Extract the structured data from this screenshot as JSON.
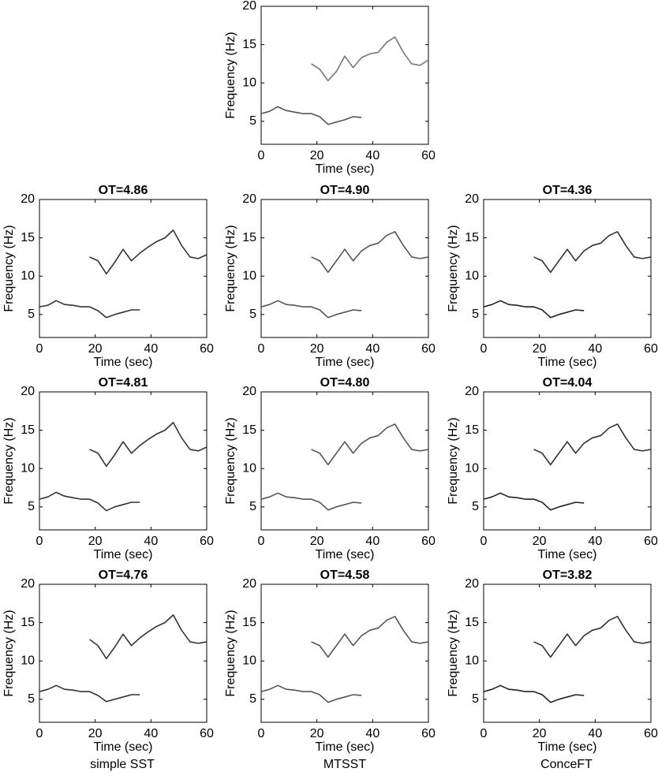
{
  "chart_data": [
    {
      "type": "line",
      "xlabel": "Time (sec)",
      "ylabel": "Frequency (Hz)",
      "xlim": [
        0,
        60
      ],
      "xticks": [
        0,
        20,
        40,
        60
      ],
      "ylim": [
        2,
        20
      ],
      "yticks": [
        5,
        10,
        15,
        20
      ],
      "x": [
        0,
        3,
        6,
        9,
        12,
        15,
        18,
        21,
        24,
        27,
        30,
        33,
        36,
        39,
        42,
        45,
        48,
        51,
        54,
        57,
        60
      ],
      "series": [
        {
          "color": "#555555",
          "values": [
            6.0,
            6.3,
            6.9,
            6.4,
            6.2,
            6.0,
            6.0,
            5.6,
            4.6,
            4.9,
            5.2,
            5.6,
            5.5,
            null,
            null,
            null,
            null,
            null,
            null,
            null,
            null
          ]
        },
        {
          "color": "#777777",
          "values": [
            null,
            null,
            null,
            null,
            null,
            null,
            12.5,
            11.8,
            10.3,
            11.5,
            13.5,
            12.0,
            13.3,
            13.8,
            14.0,
            15.3,
            16.0,
            14.0,
            12.5,
            12.3,
            13.0
          ]
        }
      ]
    },
    {
      "type": "line",
      "title": "OT=4.86",
      "xlabel": "Time (sec)",
      "ylabel": "Frequency (Hz)",
      "xlim": [
        0,
        60
      ],
      "xticks": [
        0,
        20,
        40,
        60
      ],
      "ylim": [
        2,
        20
      ],
      "yticks": [
        5,
        10,
        15,
        20
      ],
      "x": [
        0,
        3,
        6,
        9,
        12,
        15,
        18,
        21,
        24,
        27,
        30,
        33,
        36,
        39,
        42,
        45,
        48,
        51,
        54,
        57,
        60
      ],
      "series": [
        {
          "color": "#333333",
          "values": [
            6.0,
            6.2,
            6.8,
            6.3,
            6.2,
            6.0,
            6.0,
            5.5,
            4.6,
            5.0,
            5.3,
            5.6,
            5.6,
            null,
            null,
            null,
            null,
            null,
            null,
            null,
            null
          ]
        },
        {
          "color": "#333333",
          "values": [
            null,
            null,
            null,
            null,
            null,
            null,
            12.5,
            12.0,
            10.3,
            11.8,
            13.5,
            12.0,
            13.0,
            13.8,
            14.5,
            15.0,
            16.0,
            14.0,
            12.5,
            12.3,
            12.8
          ]
        }
      ]
    },
    {
      "type": "line",
      "title": "OT=4.90",
      "xlabel": "Time (sec)",
      "ylabel": "Frequency (Hz)",
      "xlim": [
        0,
        60
      ],
      "xticks": [
        0,
        20,
        40,
        60
      ],
      "ylim": [
        2,
        20
      ],
      "yticks": [
        5,
        10,
        15,
        20
      ],
      "x": [
        0,
        3,
        6,
        9,
        12,
        15,
        18,
        21,
        24,
        27,
        30,
        33,
        36,
        39,
        42,
        45,
        48,
        51,
        54,
        57,
        60
      ],
      "series": [
        {
          "color": "#555555",
          "values": [
            6.0,
            6.3,
            6.8,
            6.3,
            6.2,
            6.0,
            6.0,
            5.6,
            4.6,
            5.0,
            5.3,
            5.6,
            5.5,
            null,
            null,
            null,
            null,
            null,
            null,
            null,
            null
          ]
        },
        {
          "color": "#555555",
          "values": [
            null,
            null,
            null,
            null,
            null,
            null,
            12.5,
            12.0,
            10.5,
            12.0,
            13.5,
            12.0,
            13.3,
            14.0,
            14.3,
            15.3,
            15.8,
            14.0,
            12.5,
            12.3,
            12.5
          ]
        }
      ]
    },
    {
      "type": "line",
      "title": "OT=4.36",
      "xlabel": "Time (sec)",
      "ylabel": "Frequency (Hz)",
      "xlim": [
        0,
        60
      ],
      "xticks": [
        0,
        20,
        40,
        60
      ],
      "ylim": [
        2,
        20
      ],
      "yticks": [
        5,
        10,
        15,
        20
      ],
      "x": [
        0,
        3,
        6,
        9,
        12,
        15,
        18,
        21,
        24,
        27,
        30,
        33,
        36,
        39,
        42,
        45,
        48,
        51,
        54,
        57,
        60
      ],
      "series": [
        {
          "color": "#222222",
          "values": [
            6.0,
            6.3,
            6.8,
            6.3,
            6.2,
            6.0,
            6.0,
            5.6,
            4.6,
            5.0,
            5.3,
            5.6,
            5.5,
            null,
            null,
            null,
            null,
            null,
            null,
            null,
            null
          ]
        },
        {
          "color": "#333333",
          "values": [
            null,
            null,
            null,
            null,
            null,
            null,
            12.5,
            12.0,
            10.5,
            12.0,
            13.5,
            12.0,
            13.3,
            14.0,
            14.3,
            15.3,
            15.8,
            14.0,
            12.5,
            12.3,
            12.5
          ]
        }
      ]
    },
    {
      "type": "line",
      "title": "OT=4.81",
      "xlabel": "Time (sec)",
      "ylabel": "Frequency (Hz)",
      "xlim": [
        0,
        60
      ],
      "xticks": [
        0,
        20,
        40,
        60
      ],
      "ylim": [
        2,
        20
      ],
      "yticks": [
        5,
        10,
        15,
        20
      ],
      "x": [
        0,
        3,
        6,
        9,
        12,
        15,
        18,
        21,
        24,
        27,
        30,
        33,
        36,
        39,
        42,
        45,
        48,
        51,
        54,
        57,
        60
      ],
      "series": [
        {
          "color": "#333333",
          "values": [
            6.0,
            6.3,
            6.9,
            6.4,
            6.2,
            6.0,
            6.0,
            5.5,
            4.5,
            5.0,
            5.3,
            5.6,
            5.6,
            null,
            null,
            null,
            null,
            null,
            null,
            null,
            null
          ]
        },
        {
          "color": "#333333",
          "values": [
            null,
            null,
            null,
            null,
            null,
            null,
            12.5,
            12.0,
            10.3,
            11.8,
            13.5,
            12.0,
            13.0,
            13.8,
            14.5,
            15.0,
            16.0,
            14.0,
            12.5,
            12.3,
            12.8
          ]
        }
      ]
    },
    {
      "type": "line",
      "title": "OT=4.80",
      "xlabel": "Time (sec)",
      "ylabel": "Frequency (Hz)",
      "xlim": [
        0,
        60
      ],
      "xticks": [
        0,
        20,
        40,
        60
      ],
      "ylim": [
        2,
        20
      ],
      "yticks": [
        5,
        10,
        15,
        20
      ],
      "x": [
        0,
        3,
        6,
        9,
        12,
        15,
        18,
        21,
        24,
        27,
        30,
        33,
        36,
        39,
        42,
        45,
        48,
        51,
        54,
        57,
        60
      ],
      "series": [
        {
          "color": "#555555",
          "values": [
            6.0,
            6.3,
            6.8,
            6.3,
            6.2,
            6.0,
            6.0,
            5.6,
            4.6,
            5.0,
            5.3,
            5.6,
            5.5,
            null,
            null,
            null,
            null,
            null,
            null,
            null,
            null
          ]
        },
        {
          "color": "#555555",
          "values": [
            null,
            null,
            null,
            null,
            null,
            null,
            12.5,
            12.0,
            10.5,
            12.0,
            13.5,
            12.0,
            13.3,
            14.0,
            14.3,
            15.3,
            15.8,
            14.0,
            12.5,
            12.3,
            12.5
          ]
        }
      ]
    },
    {
      "type": "line",
      "title": "OT=4.04",
      "xlabel": "Time (sec)",
      "ylabel": "Frequency (Hz)",
      "xlim": [
        0,
        60
      ],
      "xticks": [
        0,
        20,
        40,
        60
      ],
      "ylim": [
        2,
        20
      ],
      "yticks": [
        5,
        10,
        15,
        20
      ],
      "x": [
        0,
        3,
        6,
        9,
        12,
        15,
        18,
        21,
        24,
        27,
        30,
        33,
        36,
        39,
        42,
        45,
        48,
        51,
        54,
        57,
        60
      ],
      "series": [
        {
          "color": "#222222",
          "values": [
            6.0,
            6.3,
            6.8,
            6.3,
            6.2,
            6.0,
            6.0,
            5.6,
            4.6,
            5.0,
            5.3,
            5.6,
            5.5,
            null,
            null,
            null,
            null,
            null,
            null,
            null,
            null
          ]
        },
        {
          "color": "#333333",
          "values": [
            null,
            null,
            null,
            null,
            null,
            null,
            12.5,
            12.0,
            10.5,
            12.0,
            13.5,
            12.0,
            13.3,
            14.0,
            14.3,
            15.3,
            15.8,
            14.0,
            12.5,
            12.3,
            12.5
          ]
        }
      ]
    },
    {
      "type": "line",
      "title": "OT=4.76",
      "xlabel": "Time (sec)",
      "ylabel": "Frequency (Hz)",
      "xlim": [
        0,
        60
      ],
      "xticks": [
        0,
        20,
        40,
        60
      ],
      "ylim": [
        2,
        20
      ],
      "yticks": [
        5,
        10,
        15,
        20
      ],
      "x": [
        0,
        3,
        6,
        9,
        12,
        15,
        18,
        21,
        24,
        27,
        30,
        33,
        36,
        39,
        42,
        45,
        48,
        51,
        54,
        57,
        60
      ],
      "series": [
        {
          "color": "#333333",
          "values": [
            6.0,
            6.3,
            6.8,
            6.3,
            6.2,
            6.0,
            6.0,
            5.5,
            4.7,
            5.0,
            5.3,
            5.6,
            5.6,
            null,
            null,
            null,
            null,
            null,
            null,
            null,
            null
          ]
        },
        {
          "color": "#333333",
          "values": [
            null,
            null,
            null,
            null,
            null,
            null,
            12.8,
            12.0,
            10.3,
            11.8,
            13.5,
            12.0,
            13.0,
            13.8,
            14.5,
            15.0,
            16.0,
            14.0,
            12.5,
            12.3,
            12.5
          ]
        }
      ]
    },
    {
      "type": "line",
      "title": "OT=4.58",
      "xlabel": "Time (sec)",
      "ylabel": "Frequency (Hz)",
      "xlim": [
        0,
        60
      ],
      "xticks": [
        0,
        20,
        40,
        60
      ],
      "ylim": [
        2,
        20
      ],
      "yticks": [
        5,
        10,
        15,
        20
      ],
      "x": [
        0,
        3,
        6,
        9,
        12,
        15,
        18,
        21,
        24,
        27,
        30,
        33,
        36,
        39,
        42,
        45,
        48,
        51,
        54,
        57,
        60
      ],
      "series": [
        {
          "color": "#555555",
          "values": [
            6.0,
            6.3,
            6.8,
            6.3,
            6.2,
            6.0,
            6.0,
            5.6,
            4.6,
            5.0,
            5.3,
            5.6,
            5.5,
            null,
            null,
            null,
            null,
            null,
            null,
            null,
            null
          ]
        },
        {
          "color": "#555555",
          "values": [
            null,
            null,
            null,
            null,
            null,
            null,
            12.5,
            12.0,
            10.5,
            12.0,
            13.5,
            12.0,
            13.3,
            14.0,
            14.3,
            15.3,
            15.8,
            14.0,
            12.5,
            12.3,
            12.5
          ]
        }
      ]
    },
    {
      "type": "line",
      "title": "OT=3.82",
      "xlabel": "Time (sec)",
      "ylabel": "Frequency (Hz)",
      "xlim": [
        0,
        60
      ],
      "xticks": [
        0,
        20,
        40,
        60
      ],
      "ylim": [
        2,
        20
      ],
      "yticks": [
        5,
        10,
        15,
        20
      ],
      "x": [
        0,
        3,
        6,
        9,
        12,
        15,
        18,
        21,
        24,
        27,
        30,
        33,
        36,
        39,
        42,
        45,
        48,
        51,
        54,
        57,
        60
      ],
      "series": [
        {
          "color": "#222222",
          "values": [
            6.0,
            6.3,
            6.8,
            6.3,
            6.2,
            6.0,
            6.0,
            5.6,
            4.6,
            5.0,
            5.3,
            5.6,
            5.5,
            null,
            null,
            null,
            null,
            null,
            null,
            null,
            null
          ]
        },
        {
          "color": "#333333",
          "values": [
            null,
            null,
            null,
            null,
            null,
            null,
            12.5,
            12.0,
            10.5,
            12.0,
            13.5,
            12.0,
            13.3,
            14.0,
            14.3,
            15.3,
            15.8,
            14.0,
            12.5,
            12.3,
            12.5
          ]
        }
      ]
    }
  ],
  "column_labels": [
    "simple SST",
    "MTSST",
    "ConceFT"
  ]
}
